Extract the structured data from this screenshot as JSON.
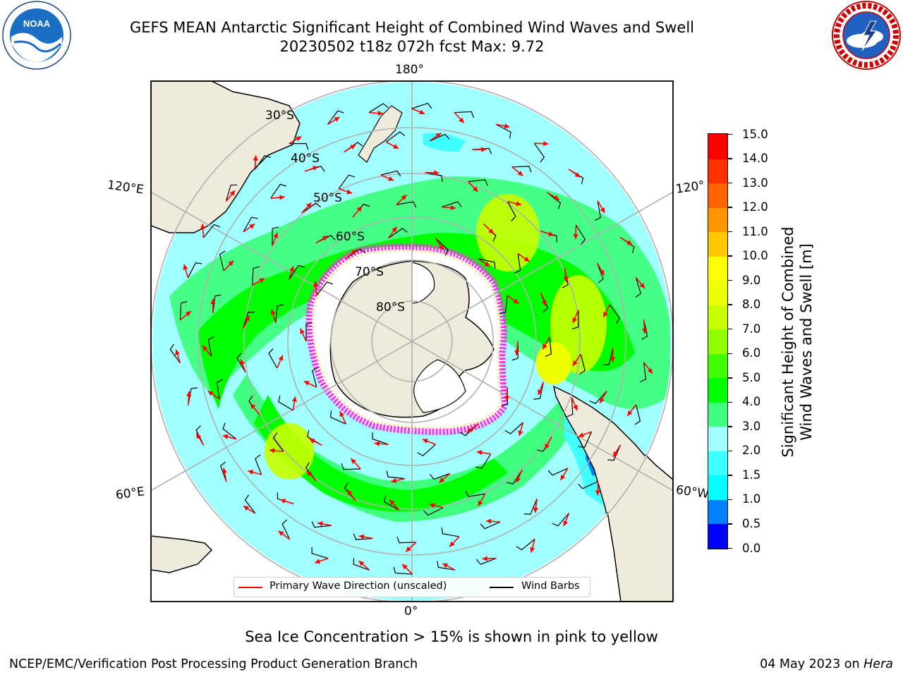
{
  "header": {
    "title_line1": "GEFS MEAN Antarctic Significant Height of Combined Wind Waves and Swell",
    "title_line2": "20230502 t18z 072h fcst   Max: 9.72"
  },
  "logos": {
    "noaa_text": "NOAA",
    "nws_text": "NATIONAL WEATHER SERVICE"
  },
  "map": {
    "lat_labels": [
      "30°S",
      "40°S",
      "50°S",
      "60°S",
      "70°S",
      "80°S"
    ],
    "lon_labels": {
      "top": "180°",
      "upper_left": "120°E",
      "upper_right": "120°",
      "lower_left": "60°E",
      "lower_right": "60°W",
      "bottom": "0°"
    },
    "colors": {
      "land": "#efebdc",
      "ice_interior": "#ffffff",
      "ice_edge": "#ff33ee",
      "ice_edge_yellow": "#ffcc00",
      "grid": "#b0b0b0",
      "wave_arrow": "#ff0000",
      "wind_barb": "#000000"
    }
  },
  "colorbar": {
    "title_line1": "Significant Height of Combined",
    "title_line2": "Wind Waves and Swell [m]",
    "ticks": [
      "0.0",
      "0.5",
      "1.0",
      "1.5",
      "2.0",
      "3.0",
      "4.0",
      "5.0",
      "6.0",
      "7.0",
      "8.0",
      "9.0",
      "10.0",
      "11.0",
      "12.0",
      "13.0",
      "14.0",
      "15.0"
    ],
    "colors": [
      "#0000ff",
      "#0080ff",
      "#00ffff",
      "#40ffff",
      "#a0ffff",
      "#40ff80",
      "#00ff00",
      "#40ff00",
      "#90ff00",
      "#c8ff00",
      "#eeff00",
      "#ffff00",
      "#ffc800",
      "#ff9600",
      "#ff6400",
      "#ff3200",
      "#ff0000"
    ]
  },
  "legend": {
    "wave_label": "Primary Wave Direction (unscaled)",
    "barb_label": "Wind Barbs",
    "wave_color": "#ff0000",
    "barb_color": "#000000"
  },
  "caption": "Sea Ice Concentration > 15% is shown in pink to yellow",
  "footer": {
    "left": "NCEP/EMC/Verification Post Processing Product Generation Branch",
    "right_date": "04 May 2023 on ",
    "right_host": "Hera"
  }
}
